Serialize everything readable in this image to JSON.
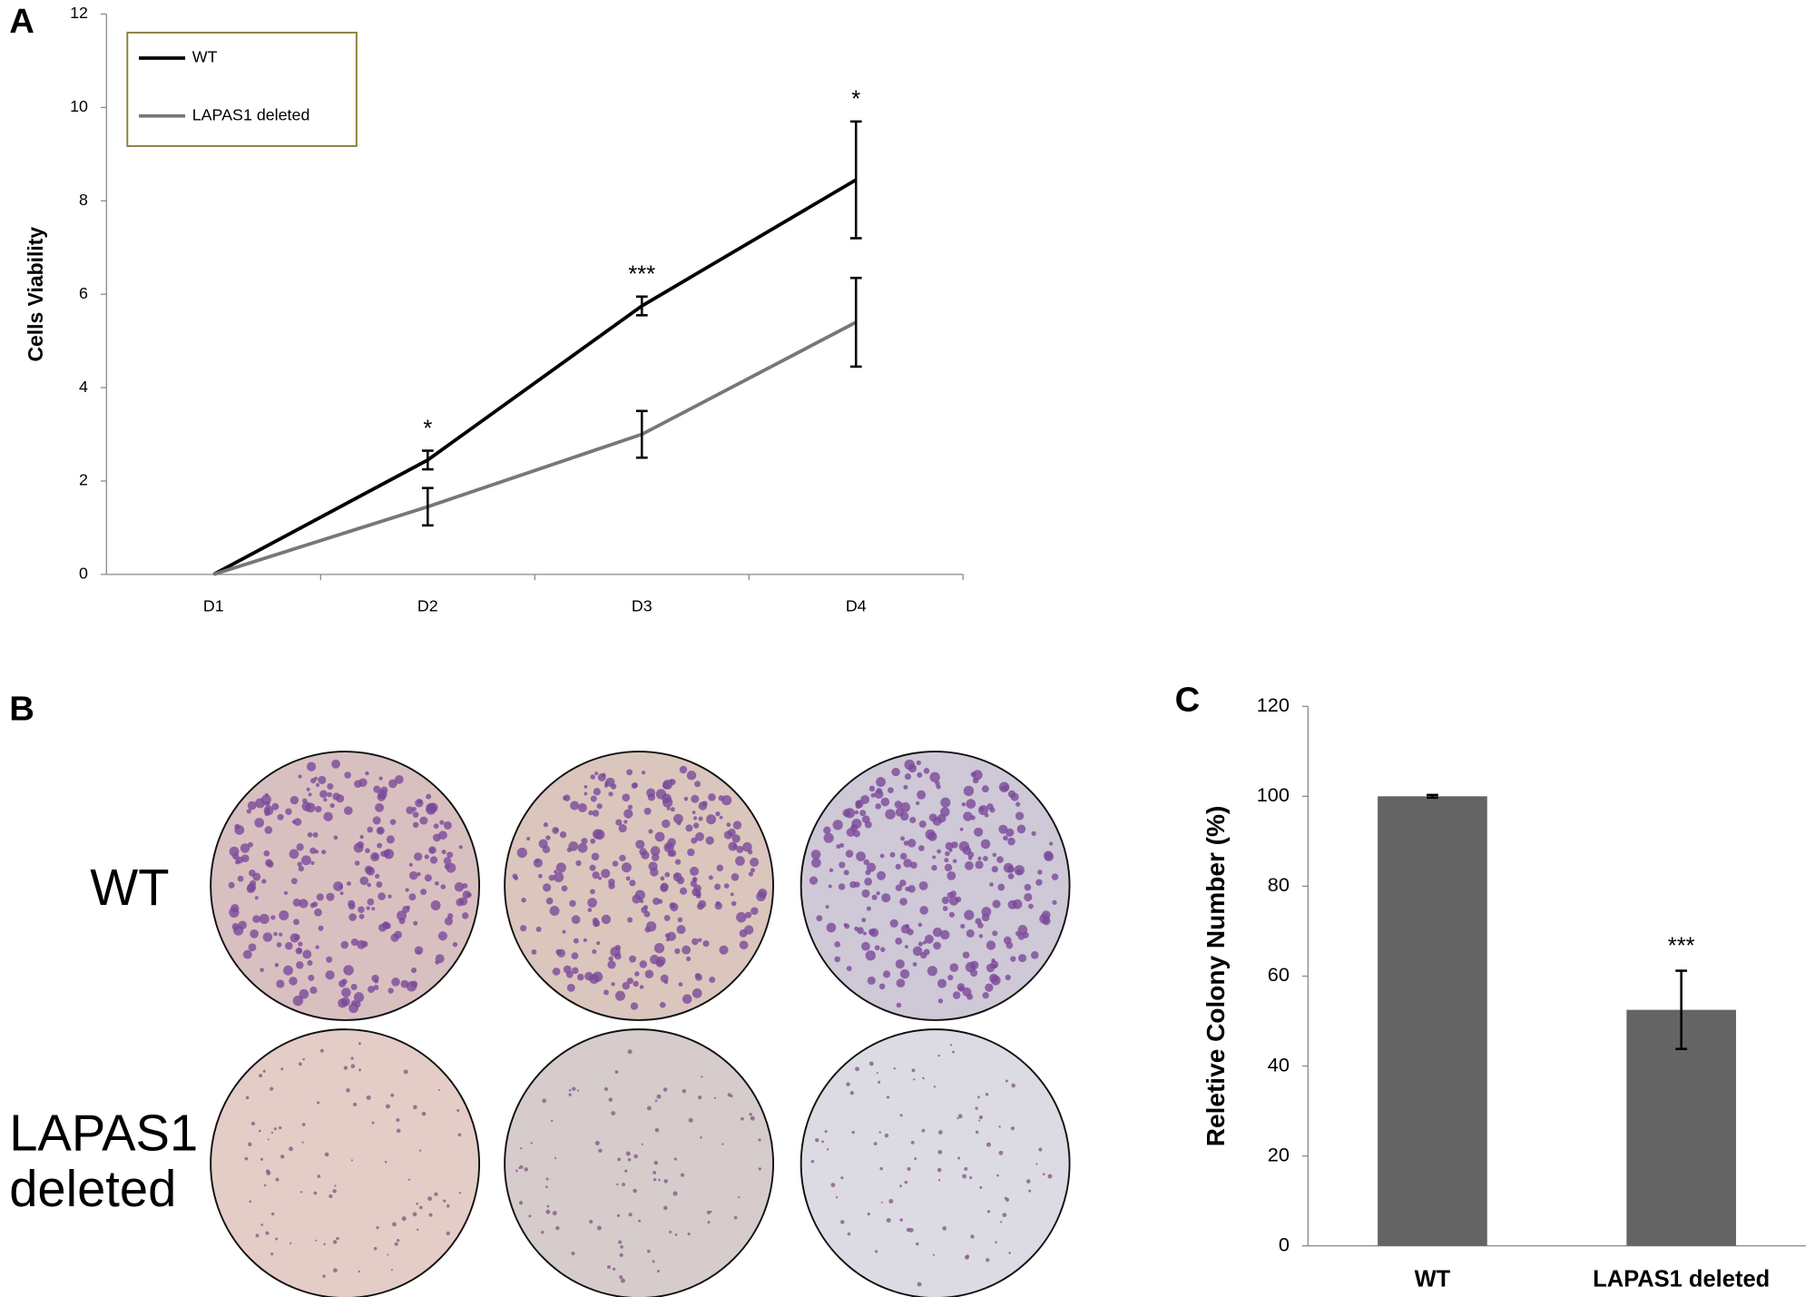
{
  "chart_data": [
    {
      "type": "line",
      "panel_label": "A",
      "ylabel": "Cells Viability",
      "categories": [
        "D1",
        "D2",
        "D3",
        "D4"
      ],
      "series": [
        {
          "name": "WT",
          "color": "#000000",
          "values": [
            0,
            2.45,
            5.75,
            8.45
          ],
          "errors": [
            null,
            0.2,
            0.2,
            1.25
          ],
          "annotations": [
            null,
            "*",
            "***",
            "*"
          ]
        },
        {
          "name": "LAPAS1 deleted",
          "color": "#777777",
          "values": [
            0,
            1.45,
            3.0,
            5.4
          ],
          "errors": [
            null,
            0.4,
            0.5,
            0.95
          ]
        }
      ],
      "ylim": [
        0,
        12
      ],
      "yticks": [
        0,
        2,
        4,
        6,
        8,
        10,
        12
      ],
      "legend": "upper-left"
    },
    {
      "type": "bar",
      "panel_label": "C",
      "ylabel": "Reletive Colony Number (%)",
      "categories": [
        "WT",
        "LAPAS1 deleted"
      ],
      "values": [
        100,
        52.5
      ],
      "errors": [
        0.3,
        8.7
      ],
      "annotations": [
        null,
        "***"
      ],
      "color": "#646464",
      "ylim": [
        0,
        120
      ],
      "yticks": [
        0,
        20,
        40,
        60,
        80,
        100,
        120
      ]
    }
  ],
  "panel_b": {
    "panel_label": "B",
    "row_labels": [
      [
        "WT"
      ],
      [
        "LAPAS1",
        "deleted"
      ]
    ]
  }
}
